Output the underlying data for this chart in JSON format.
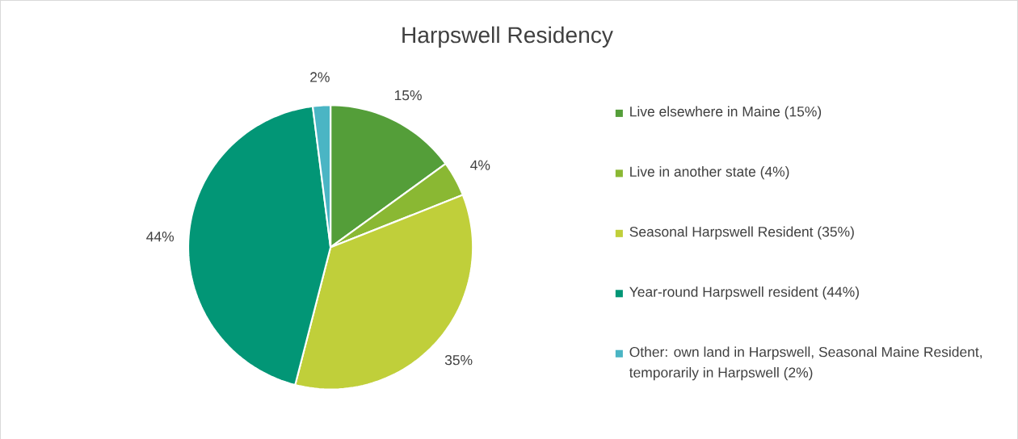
{
  "chart_data": {
    "type": "pie",
    "title": "Harpswell Residency",
    "categories": [
      "Live elsewhere in Maine (15%)",
      "Live in another state (4%)",
      "Seasonal Harpswell Resident (35%)",
      "Year-round Harpswell resident (44%)",
      "Other: own land in Harpswell, Seasonal Maine Resident, temporarily in Harpswell (2%)"
    ],
    "values": [
      15,
      4,
      35,
      44,
      2
    ],
    "value_labels": [
      "15%",
      "4%",
      "35%",
      "44%",
      "2%"
    ],
    "colors": [
      "#549e39",
      "#8ab833",
      "#c0cf3a",
      "#029676",
      "#4ab5c4"
    ],
    "legend": "right"
  }
}
